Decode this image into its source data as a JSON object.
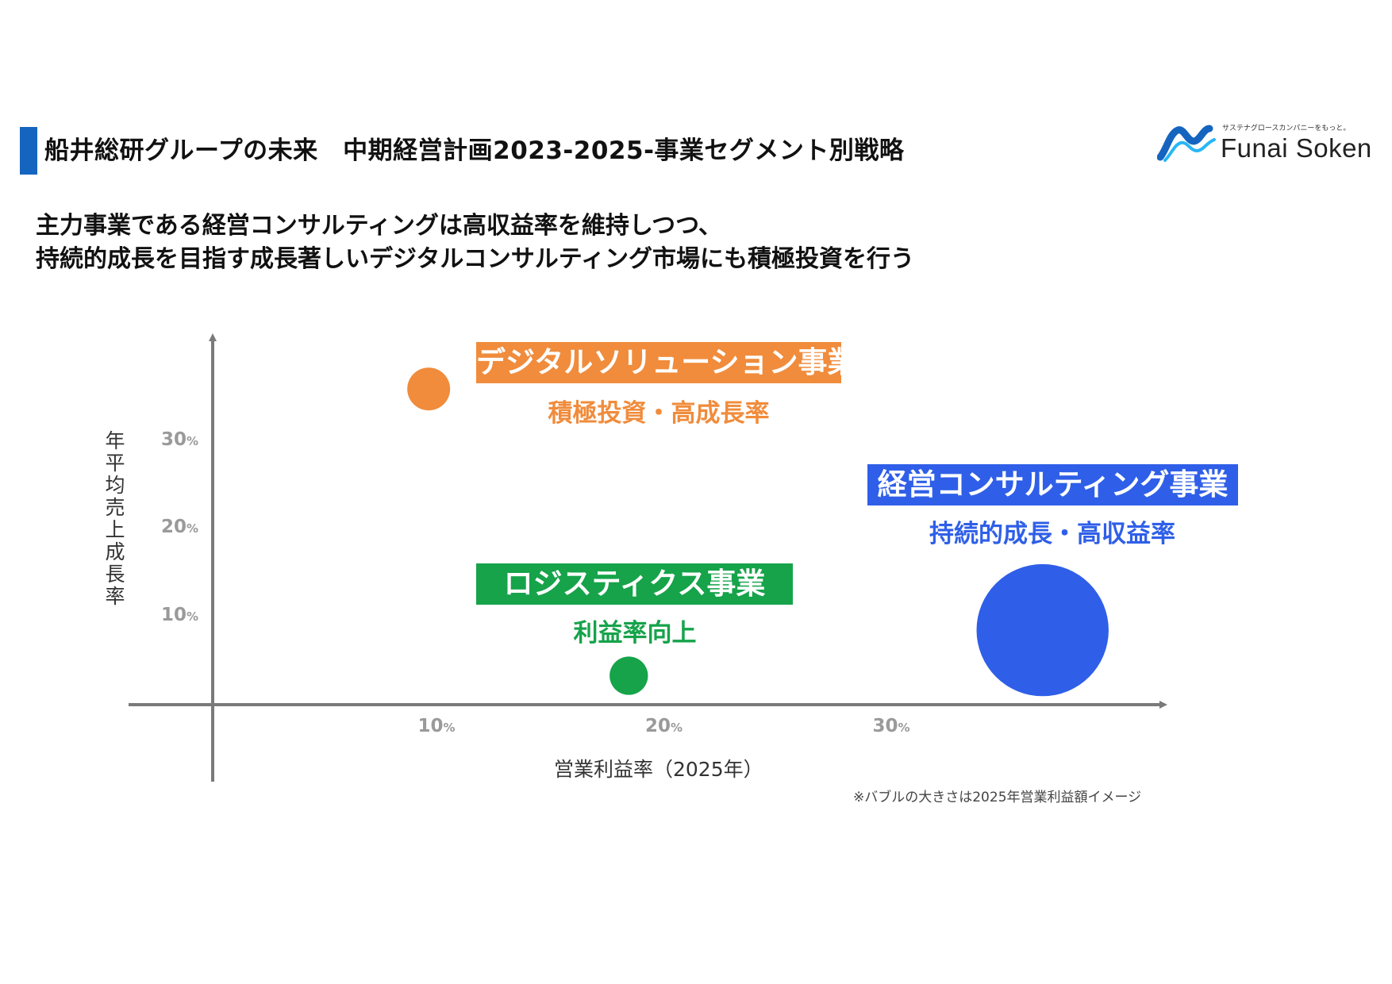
{
  "header": {
    "title": "船井総研グループの未来　中期経営計画2023-2025-事業セグメント別戦略",
    "accent_color": "#1565c0"
  },
  "logo": {
    "tagline": "サステナグロースカンパニーをもっと。",
    "brand": "Funai Soken",
    "icon": "funai-wave-logo-icon",
    "colors": [
      "#1565c0",
      "#29b6f6"
    ]
  },
  "headline": {
    "line1": "主力事業である経営コンサルティングは高収益率を維持しつつ、",
    "line2": "持続的成長を目指す成長著しいデジタルコンサルティング市場にも積極投資を行う"
  },
  "chart_data": {
    "type": "scatter",
    "title": "",
    "xlabel": "営業利益率（2025年）",
    "ylabel": "年平均売上成長率",
    "xlim": [
      0,
      42
    ],
    "ylim": [
      0,
      42
    ],
    "x_ticks": [
      {
        "value": 10,
        "num": "10",
        "unit": "%"
      },
      {
        "value": 20,
        "num": "20",
        "unit": "%"
      },
      {
        "value": 30,
        "num": "30",
        "unit": "%"
      }
    ],
    "y_ticks": [
      {
        "value": 10,
        "num": "10",
        "unit": "%"
      },
      {
        "value": 20,
        "num": "20",
        "unit": "%"
      },
      {
        "value": 30,
        "num": "30",
        "unit": "%"
      }
    ],
    "grid": false,
    "axis_color": "#7a7a7a",
    "footnote": "※バブルの大きさは2025年営業利益額イメージ",
    "bubbles": [
      {
        "label": "デジタルソリューション事業",
        "sublabel": "積極投資・高成長率",
        "x": 9.5,
        "y": 36,
        "size": 1,
        "color": "#f08c3c"
      },
      {
        "label": "経営コンサルティング事業",
        "sublabel": "持続的成長・高収益率",
        "x": 36.5,
        "y": 8.5,
        "size": 9.5,
        "color": "#2f5fe8"
      },
      {
        "label": "ロジスティクス事業",
        "sublabel": "利益率向上",
        "x": 18.3,
        "y": 3.3,
        "size": 0.8,
        "color": "#16a34a"
      }
    ]
  }
}
